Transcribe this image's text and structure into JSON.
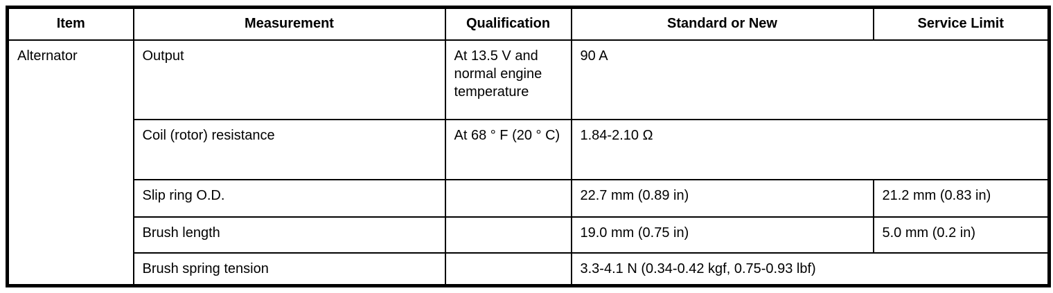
{
  "table": {
    "headers": {
      "item": "Item",
      "measurement": "Measurement",
      "qualification": "Qualification",
      "standard_or_new": "Standard or New",
      "service_limit": "Service Limit"
    },
    "item_group": "Alternator",
    "rows": [
      {
        "measurement": "Output",
        "qualification": "At 13.5 V and normal engine temperature",
        "standard_or_new": "90 A",
        "service_limit": null,
        "value_spans_both_columns": true
      },
      {
        "measurement": "Coil (rotor) resistance",
        "qualification": "At 68 ° F (20 ° C)",
        "standard_or_new": "1.84-2.10 Ω",
        "service_limit": null,
        "value_spans_both_columns": true
      },
      {
        "measurement": "Slip ring O.D.",
        "qualification": "",
        "standard_or_new": "22.7 mm (0.89 in)",
        "service_limit": "21.2 mm (0.83 in)",
        "value_spans_both_columns": false
      },
      {
        "measurement": "Brush length",
        "qualification": "",
        "standard_or_new": "19.0 mm (0.75 in)",
        "service_limit": "5.0 mm (0.2 in)",
        "value_spans_both_columns": false
      },
      {
        "measurement": "Brush spring tension",
        "qualification": "",
        "standard_or_new": "3.3-4.1 N (0.34-0.42 kgf, 0.75-0.93 lbf)",
        "service_limit": null,
        "value_spans_both_columns": true
      }
    ],
    "colors": {
      "border": "#000000",
      "background": "#ffffff",
      "text": "#000000"
    }
  }
}
